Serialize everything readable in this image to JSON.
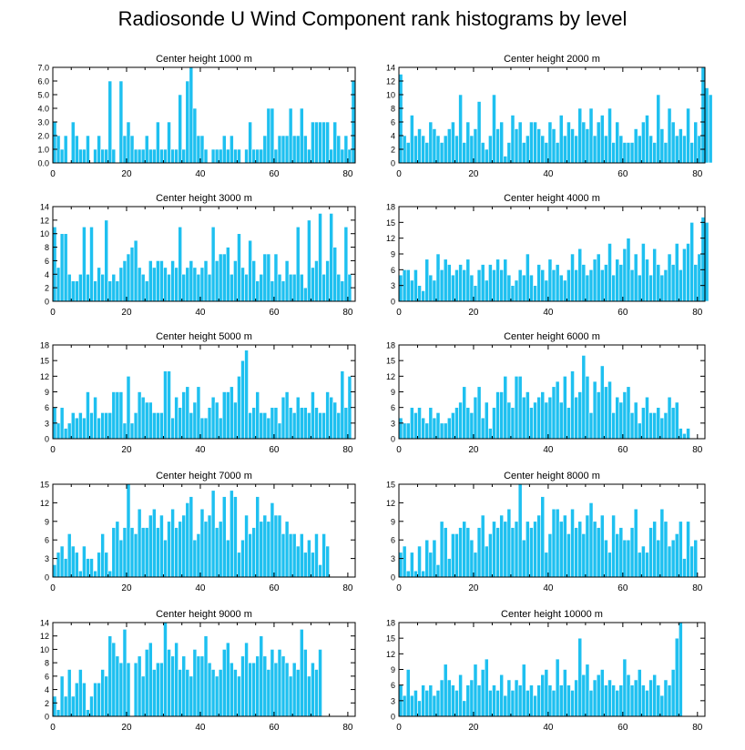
{
  "title": "Radiosonde U Wind Component rank histograms by level",
  "colors": {
    "bar": "#1ec0f0",
    "bar_edge": "#ffffff",
    "axis": "#000000"
  },
  "chart_data": [
    {
      "type": "bar",
      "title": "Center height 1000 m",
      "xlim": [
        0,
        82
      ],
      "ylim": [
        0,
        7
      ],
      "xticks": [
        0,
        20,
        40,
        60,
        80
      ],
      "yticks": [
        0,
        1,
        2,
        3,
        4,
        5,
        6,
        7
      ],
      "ytick_labels": [
        "0.0",
        "1.0",
        "2.0",
        "3.0",
        "4.0",
        "5.0",
        "6.0",
        "7.0"
      ],
      "values": [
        3,
        2,
        1,
        2,
        0,
        3,
        2,
        1,
        1,
        2,
        0,
        1,
        2,
        1,
        1,
        6,
        1,
        0,
        6,
        2,
        3,
        2,
        1,
        1,
        1,
        2,
        1,
        1,
        3,
        1,
        1,
        3,
        1,
        1,
        5,
        1,
        6,
        7,
        4,
        2,
        2,
        1,
        0,
        1,
        1,
        1,
        2,
        1,
        2,
        1,
        1,
        0,
        1,
        3,
        1,
        1,
        1,
        2,
        4,
        4,
        1,
        2,
        2,
        2,
        4,
        2,
        2,
        4,
        2,
        1,
        3,
        3,
        3,
        3,
        3,
        1,
        3,
        2,
        1,
        2,
        1,
        6
      ]
    },
    {
      "type": "bar",
      "title": "Center height 2000 m",
      "xlim": [
        0,
        82
      ],
      "ylim": [
        0,
        14
      ],
      "xticks": [
        0,
        20,
        40,
        60,
        80
      ],
      "yticks": [
        0,
        2,
        4,
        6,
        8,
        10,
        12,
        14
      ],
      "ytick_labels": [
        "0",
        "2",
        "4",
        "6",
        "8",
        "10",
        "12",
        "14"
      ],
      "values": [
        13,
        4,
        3,
        7,
        4,
        5,
        4,
        3,
        6,
        5,
        4,
        3,
        4,
        5,
        6,
        4,
        10,
        3,
        6,
        4,
        5,
        9,
        3,
        2,
        4,
        10,
        5,
        6,
        1,
        3,
        7,
        5,
        6,
        3,
        4,
        6,
        6,
        5,
        4,
        3,
        6,
        5,
        3,
        7,
        4,
        6,
        5,
        4,
        8,
        6,
        5,
        8,
        4,
        6,
        7,
        4,
        8,
        3,
        6,
        4,
        3,
        3,
        3,
        5,
        4,
        6,
        7,
        4,
        3,
        10,
        5,
        3,
        8,
        6,
        4,
        5,
        4,
        8,
        3,
        6,
        4,
        14,
        11,
        10
      ]
    },
    {
      "type": "bar",
      "title": "Center height 3000 m",
      "xlim": [
        0,
        82
      ],
      "ylim": [
        0,
        14
      ],
      "xticks": [
        0,
        20,
        40,
        60,
        80
      ],
      "yticks": [
        0,
        2,
        4,
        6,
        8,
        10,
        12,
        14
      ],
      "ytick_labels": [
        "0",
        "2",
        "4",
        "6",
        "8",
        "10",
        "12",
        "14"
      ],
      "values": [
        11,
        5,
        10,
        10,
        4,
        3,
        3,
        4,
        11,
        4,
        11,
        3,
        5,
        4,
        12,
        3,
        4,
        3,
        5,
        6,
        7,
        8,
        9,
        5,
        4,
        3,
        6,
        5,
        6,
        6,
        5,
        4,
        6,
        5,
        11,
        4,
        5,
        6,
        5,
        4,
        5,
        6,
        4,
        11,
        6,
        7,
        7,
        8,
        4,
        6,
        10,
        5,
        4,
        9,
        6,
        3,
        4,
        7,
        7,
        3,
        7,
        4,
        3,
        6,
        4,
        4,
        11,
        4,
        2,
        12,
        5,
        6,
        13,
        4,
        6,
        13,
        8,
        4,
        3,
        11,
        4
      ]
    },
    {
      "type": "bar",
      "title": "Center height 4000 m",
      "xlim": [
        0,
        82
      ],
      "ylim": [
        0,
        18
      ],
      "xticks": [
        0,
        20,
        40,
        60,
        80
      ],
      "yticks": [
        0,
        3,
        6,
        9,
        12,
        15,
        18
      ],
      "ytick_labels": [
        "0",
        "3",
        "6",
        "9",
        "12",
        "15",
        "18"
      ],
      "values": [
        5,
        6,
        6,
        4,
        6,
        3,
        2,
        8,
        5,
        4,
        9,
        6,
        8,
        7,
        5,
        6,
        7,
        6,
        8,
        5,
        3,
        6,
        7,
        4,
        7,
        6,
        8,
        6,
        8,
        5,
        3,
        4,
        6,
        5,
        9,
        5,
        3,
        7,
        6,
        4,
        8,
        6,
        7,
        5,
        4,
        6,
        9,
        6,
        10,
        7,
        5,
        6,
        8,
        9,
        6,
        7,
        11,
        5,
        8,
        7,
        10,
        12,
        6,
        9,
        5,
        11,
        8,
        5,
        10,
        7,
        5,
        6,
        9,
        7,
        11,
        6,
        10,
        11,
        15,
        7,
        9,
        16,
        15
      ]
    },
    {
      "type": "bar",
      "title": "Center height 5000 m",
      "xlim": [
        0,
        82
      ],
      "ylim": [
        0,
        18
      ],
      "xticks": [
        0,
        20,
        40,
        60,
        80
      ],
      "yticks": [
        0,
        3,
        6,
        9,
        12,
        15,
        18
      ],
      "ytick_labels": [
        "0",
        "3",
        "6",
        "9",
        "12",
        "15",
        "18"
      ],
      "values": [
        6,
        3,
        6,
        2,
        3,
        5,
        4,
        5,
        4,
        9,
        5,
        8,
        4,
        5,
        5,
        5,
        9,
        9,
        9,
        3,
        12,
        3,
        5,
        9,
        8,
        7,
        7,
        5,
        5,
        5,
        13,
        13,
        4,
        8,
        6,
        9,
        10,
        5,
        7,
        10,
        4,
        4,
        6,
        8,
        7,
        4,
        9,
        9,
        10,
        7,
        12,
        15,
        17,
        5,
        6,
        9,
        5,
        5,
        4,
        6,
        6,
        3,
        8,
        9,
        6,
        5,
        8,
        6,
        6,
        5,
        9,
        6,
        5,
        5,
        9,
        8,
        7,
        5,
        13,
        6,
        12
      ]
    },
    {
      "type": "bar",
      "title": "Center height 6000 m",
      "xlim": [
        0,
        82
      ],
      "ylim": [
        0,
        18
      ],
      "xticks": [
        0,
        20,
        40,
        60,
        80
      ],
      "yticks": [
        0,
        3,
        6,
        9,
        12,
        15,
        18
      ],
      "ytick_labels": [
        "0",
        "3",
        "6",
        "9",
        "12",
        "15",
        "18"
      ],
      "values": [
        4,
        3,
        3,
        6,
        5,
        6,
        4,
        3,
        6,
        4,
        5,
        3,
        3,
        4,
        5,
        6,
        7,
        10,
        6,
        5,
        8,
        10,
        4,
        7,
        2,
        6,
        9,
        9,
        12,
        7,
        6,
        12,
        12,
        8,
        9,
        6,
        7,
        8,
        9,
        7,
        8,
        10,
        11,
        7,
        12,
        6,
        13,
        8,
        9,
        16,
        12,
        5,
        11,
        9,
        14,
        10,
        11,
        5,
        8,
        7,
        9,
        10,
        5,
        7,
        3,
        6,
        8,
        5,
        5,
        6,
        4,
        5,
        8,
        6,
        7,
        2,
        1,
        2
      ]
    },
    {
      "type": "bar",
      "title": "Center height 7000 m",
      "xlim": [
        0,
        82
      ],
      "ylim": [
        0,
        15
      ],
      "xticks": [
        0,
        20,
        40,
        60,
        80
      ],
      "yticks": [
        0,
        3,
        6,
        9,
        12,
        15
      ],
      "ytick_labels": [
        "0",
        "3",
        "6",
        "9",
        "12",
        "15"
      ],
      "values": [
        2,
        4,
        5,
        3,
        7,
        5,
        4,
        1,
        5,
        3,
        3,
        1,
        4,
        7,
        4,
        1,
        8,
        9,
        6,
        8,
        15,
        8,
        7,
        11,
        8,
        8,
        10,
        11,
        8,
        10,
        6,
        9,
        11,
        8,
        9,
        10,
        12,
        13,
        6,
        7,
        11,
        9,
        10,
        14,
        8,
        9,
        13,
        6,
        14,
        13,
        4,
        6,
        10,
        7,
        8,
        13,
        9,
        10,
        9,
        12,
        10,
        10,
        7,
        9,
        7,
        7,
        5,
        7,
        4,
        6,
        4,
        7,
        2,
        7,
        5
      ]
    },
    {
      "type": "bar",
      "title": "Center height 8000 m",
      "xlim": [
        0,
        82
      ],
      "ylim": [
        0,
        15
      ],
      "xticks": [
        0,
        20,
        40,
        60,
        80
      ],
      "yticks": [
        0,
        3,
        6,
        9,
        12,
        15
      ],
      "ytick_labels": [
        "0",
        "3",
        "6",
        "9",
        "12",
        "15"
      ],
      "values": [
        4,
        5,
        1,
        4,
        1,
        5,
        1,
        6,
        4,
        6,
        2,
        9,
        8,
        3,
        7,
        7,
        8,
        9,
        8,
        6,
        4,
        8,
        10,
        5,
        7,
        9,
        8,
        10,
        9,
        11,
        8,
        9,
        15,
        6,
        9,
        8,
        9,
        10,
        13,
        4,
        7,
        11,
        11,
        9,
        10,
        7,
        11,
        8,
        9,
        7,
        10,
        12,
        9,
        8,
        10,
        6,
        4,
        10,
        7,
        8,
        6,
        6,
        8,
        11,
        4,
        5,
        4,
        8,
        9,
        6,
        11,
        9,
        5,
        6,
        7,
        9,
        3,
        9,
        5,
        6
      ]
    },
    {
      "type": "bar",
      "title": "Center height 9000 m",
      "xlim": [
        0,
        82
      ],
      "ylim": [
        0,
        14
      ],
      "xticks": [
        0,
        20,
        40,
        60,
        80
      ],
      "yticks": [
        0,
        2,
        4,
        6,
        8,
        10,
        12,
        14
      ],
      "ytick_labels": [
        "0",
        "2",
        "4",
        "6",
        "8",
        "10",
        "12",
        "14"
      ],
      "values": [
        3,
        1,
        6,
        3,
        7,
        3,
        5,
        7,
        5,
        1,
        3,
        5,
        5,
        7,
        6,
        12,
        11,
        9,
        8,
        13,
        8,
        0,
        8,
        9,
        6,
        10,
        11,
        7,
        8,
        8,
        14,
        10,
        9,
        11,
        7,
        9,
        7,
        6,
        10,
        9,
        9,
        12,
        8,
        7,
        6,
        7,
        10,
        11,
        8,
        7,
        6,
        9,
        11,
        8,
        8,
        9,
        12,
        9,
        7,
        10,
        8,
        10,
        9,
        8,
        6,
        8,
        7,
        13,
        10,
        6,
        8,
        7,
        10
      ]
    },
    {
      "type": "bar",
      "title": "Center height 10000 m",
      "xlim": [
        0,
        82
      ],
      "ylim": [
        0,
        18
      ],
      "xticks": [
        0,
        20,
        40,
        60,
        80
      ],
      "yticks": [
        0,
        3,
        6,
        9,
        12,
        15,
        18
      ],
      "ytick_labels": [
        "0",
        "3",
        "6",
        "9",
        "12",
        "15",
        "18"
      ],
      "values": [
        6,
        4,
        9,
        4,
        5,
        3,
        6,
        5,
        6,
        4,
        5,
        7,
        10,
        7,
        6,
        5,
        8,
        3,
        6,
        7,
        10,
        6,
        9,
        11,
        5,
        6,
        5,
        8,
        4,
        7,
        5,
        7,
        6,
        10,
        5,
        6,
        4,
        6,
        8,
        9,
        6,
        5,
        11,
        6,
        9,
        6,
        5,
        7,
        15,
        8,
        10,
        5,
        7,
        8,
        9,
        6,
        7,
        6,
        5,
        6,
        11,
        8,
        6,
        7,
        9,
        6,
        5,
        7,
        8,
        6,
        4,
        7,
        6,
        9,
        15,
        18
      ]
    }
  ]
}
